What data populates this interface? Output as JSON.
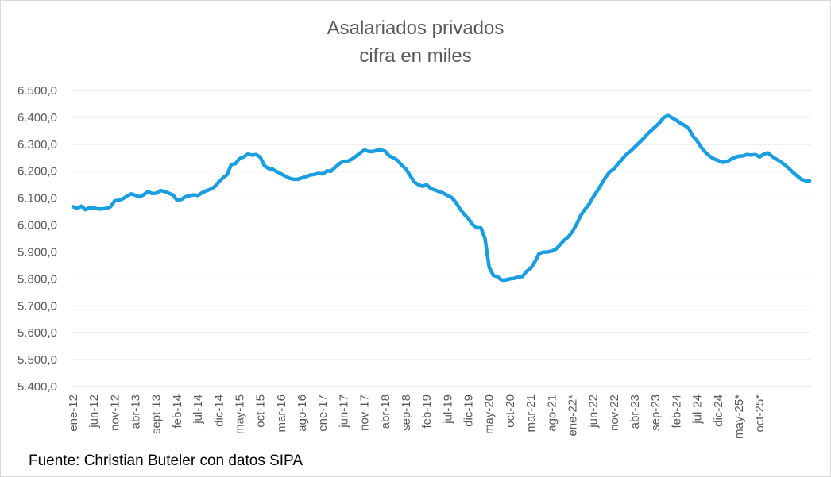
{
  "chart_data": {
    "type": "line",
    "title": "Asalariados privados",
    "subtitle": "cifra en miles",
    "source": "Fuente: Christian Buteler con datos SIPA",
    "ylabel": "",
    "xlabel": "",
    "ylim": [
      5400,
      6500
    ],
    "y_tick_labels": [
      "6.500,0",
      "6.400,0",
      "6.300,0",
      "6.200,0",
      "6.100,0",
      "6.000,0",
      "5.900,0",
      "5.800,0",
      "5.700,0",
      "5.600,0",
      "5.500,0",
      "5.400,0"
    ],
    "y_tick_values": [
      6500,
      6400,
      6300,
      6200,
      6100,
      6000,
      5900,
      5800,
      5700,
      5600,
      5500,
      5400
    ],
    "grid": true,
    "line_color": "#1a9ee0",
    "x_tick_labels": [
      {
        "i": 0,
        "label": "ene-12"
      },
      {
        "i": 5,
        "label": "jun-12"
      },
      {
        "i": 10,
        "label": "nov-12"
      },
      {
        "i": 15,
        "label": "abr-13"
      },
      {
        "i": 20,
        "label": "sept-13"
      },
      {
        "i": 25,
        "label": "feb-14"
      },
      {
        "i": 30,
        "label": "jul-14"
      },
      {
        "i": 35,
        "label": "dic-14"
      },
      {
        "i": 40,
        "label": "may-15"
      },
      {
        "i": 45,
        "label": "oct-15"
      },
      {
        "i": 50,
        "label": "mar-16"
      },
      {
        "i": 55,
        "label": "ago-16"
      },
      {
        "i": 60,
        "label": "ene-17"
      },
      {
        "i": 65,
        "label": "jun-17"
      },
      {
        "i": 70,
        "label": "nov-17"
      },
      {
        "i": 75,
        "label": "abr-18"
      },
      {
        "i": 80,
        "label": "sep-18"
      },
      {
        "i": 85,
        "label": "feb-19"
      },
      {
        "i": 90,
        "label": "jul-19"
      },
      {
        "i": 95,
        "label": "dic-19"
      },
      {
        "i": 100,
        "label": "may-20"
      },
      {
        "i": 105,
        "label": "oct-20"
      },
      {
        "i": 110,
        "label": "mar-21"
      },
      {
        "i": 115,
        "label": "ago-21"
      },
      {
        "i": 120,
        "label": "ene-22*"
      },
      {
        "i": 125,
        "label": "jun-22"
      },
      {
        "i": 130,
        "label": "nov-22"
      },
      {
        "i": 135,
        "label": "abr-23"
      },
      {
        "i": 140,
        "label": "sep-23"
      },
      {
        "i": 145,
        "label": "feb-24"
      },
      {
        "i": 150,
        "label": "jul-24"
      },
      {
        "i": 155,
        "label": "dic-24"
      },
      {
        "i": 160,
        "label": "may-25*"
      },
      {
        "i": 165,
        "label": "oct-25*"
      }
    ],
    "series": [
      {
        "values": [
          6068,
          6062,
          6070,
          6057,
          6065,
          6063,
          6060,
          6060,
          6062,
          6068,
          6090,
          6092,
          6098,
          6108,
          6116,
          6110,
          6105,
          6113,
          6124,
          6117,
          6118,
          6128,
          6125,
          6118,
          6112,
          6092,
          6095,
          6105,
          6109,
          6112,
          6110,
          6120,
          6127,
          6133,
          6142,
          6160,
          6175,
          6187,
          6224,
          6228,
          6247,
          6253,
          6264,
          6260,
          6262,
          6252,
          6220,
          6210,
          6207,
          6198,
          6190,
          6182,
          6174,
          6170,
          6170,
          6175,
          6180,
          6186,
          6188,
          6192,
          6190,
          6201,
          6200,
          6215,
          6228,
          6237,
          6237,
          6245,
          6256,
          6268,
          6279,
          6274,
          6273,
          6278,
          6279,
          6274,
          6257,
          6250,
          6240,
          6222,
          6208,
          6184,
          6160,
          6150,
          6144,
          6150,
          6135,
          6130,
          6124,
          6118,
          6110,
          6102,
          6084,
          6060,
          6040,
          6024,
          6002,
          5990,
          5990,
          5950,
          5843,
          5813,
          5808,
          5795,
          5796,
          5800,
          5802,
          5807,
          5809,
          5828,
          5840,
          5864,
          5894,
          5899,
          5900,
          5903,
          5910,
          5926,
          5943,
          5956,
          5975,
          6003,
          6035,
          6058,
          6077,
          6104,
          6127,
          6152,
          6178,
          6198,
          6209,
          6228,
          6245,
          6263,
          6275,
          6290,
          6305,
          6320,
          6338,
          6352,
          6366,
          6381,
          6400,
          6407,
          6398,
          6389,
          6378,
          6370,
          6358,
          6330,
          6312,
          6288,
          6270,
          6256,
          6246,
          6240,
          6233,
          6235,
          6243,
          6251,
          6256,
          6257,
          6262,
          6260,
          6262,
          6253,
          6264,
          6268,
          6255,
          6245,
          6236,
          6224,
          6211,
          6196,
          6183,
          6170,
          6165,
          6164
        ]
      }
    ]
  }
}
